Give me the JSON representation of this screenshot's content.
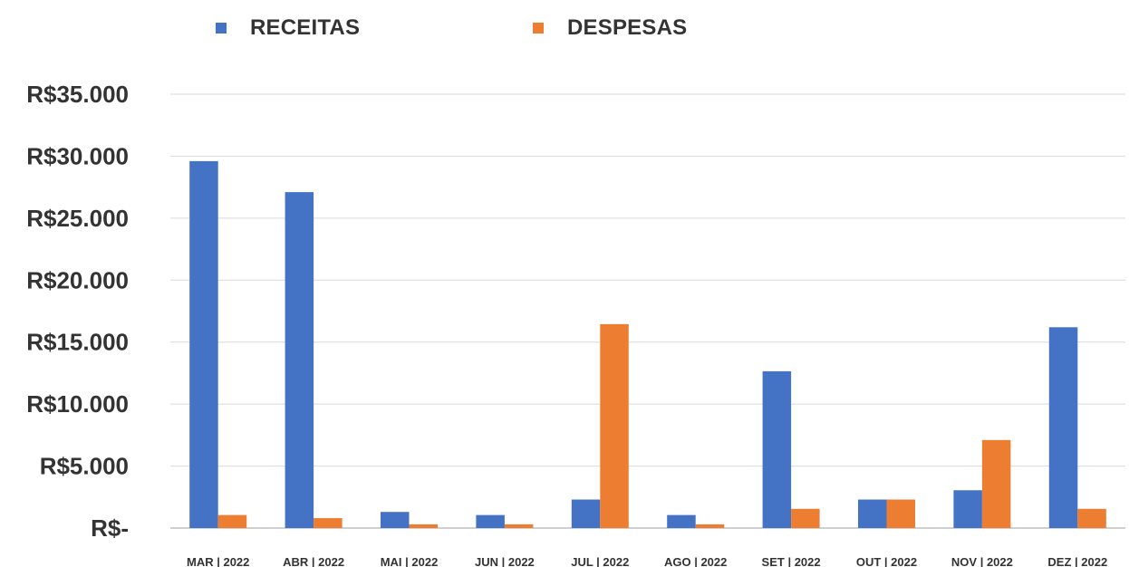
{
  "chart_data": {
    "type": "bar",
    "categories": [
      "MAR | 2022",
      "ABR | 2022",
      "MAI | 2022",
      "JUN | 2022",
      "JUL | 2022",
      "AGO | 2022",
      "SET | 2022",
      "OUT | 2022",
      "NOV | 2022",
      "DEZ | 2022"
    ],
    "series": [
      {
        "name": "RECEITAS",
        "color": "#4472C4",
        "values": [
          29600,
          27100,
          1300,
          1050,
          2300,
          1050,
          12650,
          2300,
          3050,
          16200
        ]
      },
      {
        "name": "DESPESAS",
        "color": "#ED7D31",
        "values": [
          1050,
          800,
          300,
          300,
          16450,
          300,
          1550,
          2300,
          7100,
          1550
        ]
      }
    ],
    "yticks": [
      {
        "value": 0,
        "label": "R$-"
      },
      {
        "value": 5000,
        "label": "R$5.000"
      },
      {
        "value": 10000,
        "label": "R$10.000"
      },
      {
        "value": 15000,
        "label": "R$15.000"
      },
      {
        "value": 20000,
        "label": "R$20.000"
      },
      {
        "value": 25000,
        "label": "R$25.000"
      },
      {
        "value": 30000,
        "label": "R$30.000"
      },
      {
        "value": 35000,
        "label": "R$35.000"
      }
    ],
    "ylim": [
      0,
      35000
    ],
    "grid": true,
    "legend_position": "top"
  }
}
